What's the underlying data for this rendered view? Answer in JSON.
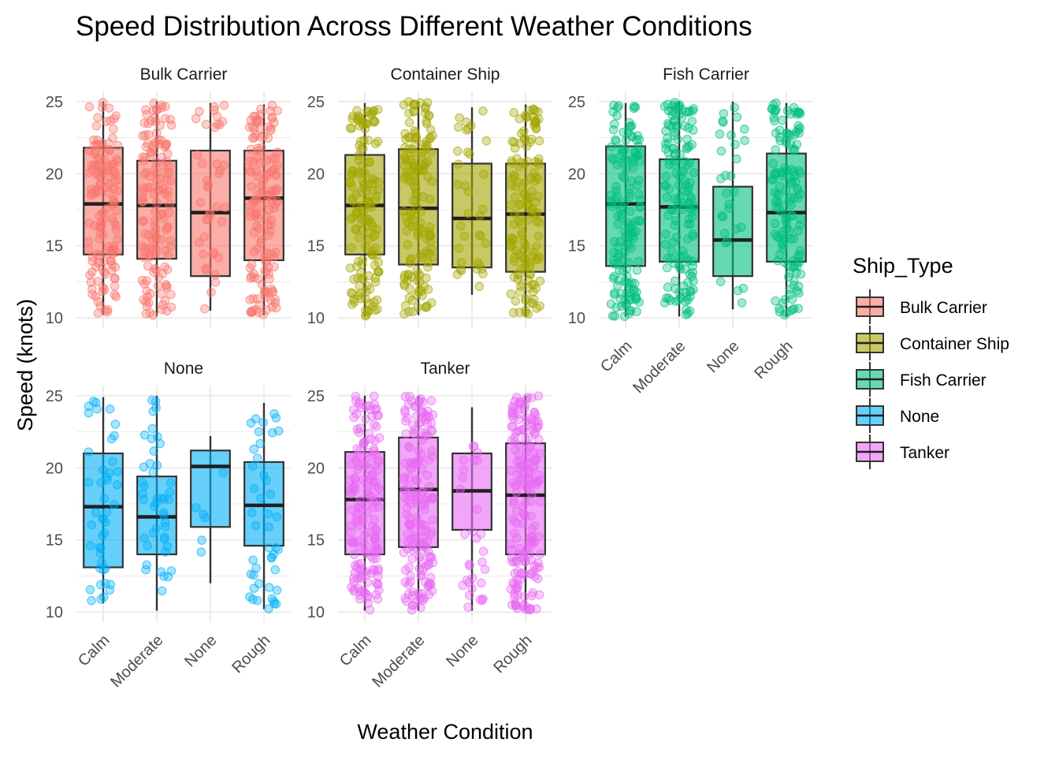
{
  "chart_data": {
    "type": "box",
    "title": "Speed Distribution Across Different Weather Conditions",
    "xlabel": "Weather Condition",
    "ylabel": "Speed (knots)",
    "categories": [
      "Calm",
      "Moderate",
      "None",
      "Rough"
    ],
    "ylim": [
      9.3,
      25.7
    ],
    "yticks": [
      10,
      15,
      20,
      25
    ],
    "grid": true,
    "legend": {
      "title": "Ship_Type",
      "position": "right",
      "entries": [
        "Bulk Carrier",
        "Container Ship",
        "Fish Carrier",
        "None",
        "Tanker"
      ]
    },
    "panels": [
      {
        "name": "Bulk Carrier",
        "color": "#F8766D",
        "boxes": [
          {
            "category": "Calm",
            "min": 10.2,
            "q1": 14.4,
            "median": 17.9,
            "q3": 21.8,
            "max": 25.0,
            "n": 140
          },
          {
            "category": "Moderate",
            "min": 10.1,
            "q1": 14.1,
            "median": 17.8,
            "q3": 20.9,
            "max": 25.0,
            "n": 140
          },
          {
            "category": "None",
            "min": 10.5,
            "q1": 12.9,
            "median": 17.3,
            "q3": 21.6,
            "max": 24.9,
            "n": 40
          },
          {
            "category": "Rough",
            "min": 10.2,
            "q1": 14.0,
            "median": 18.3,
            "q3": 21.6,
            "max": 24.8,
            "n": 140
          }
        ]
      },
      {
        "name": "Container Ship",
        "color": "#A3A500",
        "boxes": [
          {
            "category": "Calm",
            "min": 10.1,
            "q1": 14.4,
            "median": 17.8,
            "q3": 21.3,
            "max": 24.9,
            "n": 150
          },
          {
            "category": "Moderate",
            "min": 10.2,
            "q1": 13.7,
            "median": 17.6,
            "q3": 21.7,
            "max": 25.0,
            "n": 150
          },
          {
            "category": "None",
            "min": 11.6,
            "q1": 13.5,
            "median": 16.9,
            "q3": 20.7,
            "max": 24.6,
            "n": 35
          },
          {
            "category": "Rough",
            "min": 10.1,
            "q1": 13.2,
            "median": 17.2,
            "q3": 20.7,
            "max": 24.8,
            "n": 140
          }
        ]
      },
      {
        "name": "Fish Carrier",
        "color": "#00BF7D",
        "boxes": [
          {
            "category": "Calm",
            "min": 10.1,
            "q1": 13.6,
            "median": 17.9,
            "q3": 21.9,
            "max": 24.9,
            "n": 150
          },
          {
            "category": "Moderate",
            "min": 10.1,
            "q1": 13.9,
            "median": 17.7,
            "q3": 21.0,
            "max": 25.0,
            "n": 150
          },
          {
            "category": "None",
            "min": 10.6,
            "q1": 12.9,
            "median": 15.4,
            "q3": 19.1,
            "max": 25.0,
            "n": 30
          },
          {
            "category": "Rough",
            "min": 10.1,
            "q1": 13.9,
            "median": 17.3,
            "q3": 21.4,
            "max": 24.9,
            "n": 140
          }
        ]
      },
      {
        "name": "None",
        "color": "#00B0F6",
        "boxes": [
          {
            "category": "Calm",
            "min": 10.6,
            "q1": 13.1,
            "median": 17.3,
            "q3": 21.0,
            "max": 24.9,
            "n": 45
          },
          {
            "category": "Moderate",
            "min": 10.1,
            "q1": 14.0,
            "median": 16.6,
            "q3": 19.4,
            "max": 25.0,
            "n": 45
          },
          {
            "category": "None",
            "min": 12.0,
            "q1": 15.9,
            "median": 20.1,
            "q3": 21.2,
            "max": 22.2,
            "n": 6
          },
          {
            "category": "Rough",
            "min": 10.2,
            "q1": 14.6,
            "median": 17.4,
            "q3": 20.4,
            "max": 24.5,
            "n": 45
          }
        ]
      },
      {
        "name": "Tanker",
        "color": "#E76BF3",
        "boxes": [
          {
            "category": "Calm",
            "min": 10.1,
            "q1": 14.0,
            "median": 17.8,
            "q3": 21.1,
            "max": 25.0,
            "n": 170
          },
          {
            "category": "Moderate",
            "min": 10.1,
            "q1": 14.5,
            "median": 18.5,
            "q3": 22.1,
            "max": 25.0,
            "n": 170
          },
          {
            "category": "None",
            "min": 10.1,
            "q1": 15.7,
            "median": 18.4,
            "q3": 21.0,
            "max": 24.2,
            "n": 30
          },
          {
            "category": "Rough",
            "min": 10.1,
            "q1": 14.0,
            "median": 18.1,
            "q3": 21.7,
            "max": 25.0,
            "n": 190
          }
        ]
      }
    ]
  }
}
